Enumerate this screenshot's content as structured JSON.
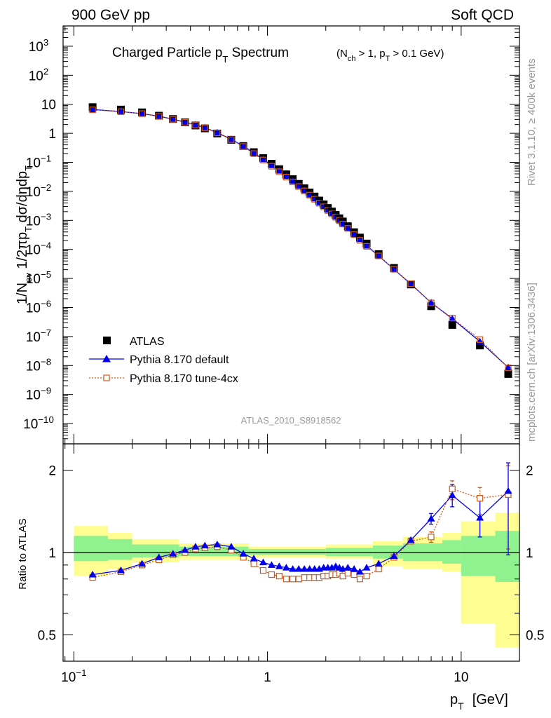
{
  "header": {
    "left": "900 GeV pp",
    "right": "Soft QCD"
  },
  "side_text": {
    "rivet": "Rivet 3.1.10, ≥ 400k events",
    "mcplots": "mcplots.cern.ch [arXiv:1306.3436]"
  },
  "colors": {
    "atlas": "#000000",
    "default": "#0000ee",
    "tune": "#cc5a1e",
    "band_inner": "#8ff28f",
    "band_outer": "#fdfd91",
    "side_text": "#999999"
  },
  "chart_data": [
    {
      "type": "scatter",
      "title": "Charged Particle pT Spectrum",
      "title_main": "Charged Particle p",
      "title_sub": "T",
      "title_tail": " Spectrum",
      "cuts": {
        "p1": "(N",
        "s1": "ch",
        "p2": " > 1, p",
        "s2": "T",
        "p3": " > 0.1 GeV)"
      },
      "ylabel": "1/N_ev 1/2πp_T dσ/dηdp_T",
      "ylabel_parts": {
        "a": "1/N",
        "a_sub": "ev",
        "b": " 1/2πp",
        "b_sub": "T",
        "c": " dσ/dηdp",
        "c_sub": "T"
      },
      "xlabel": "p_T [GeV]",
      "xlabel_parts": {
        "main": "p",
        "sub": "T",
        "unit": "[GeV]"
      },
      "analysis_id": "ATLAS_2010_S8918562",
      "xscale": "log",
      "yscale": "log",
      "xlim": [
        0.088,
        20
      ],
      "ylim": [
        2e-11,
        5000
      ],
      "x_ticks": [
        {
          "value": 0.1,
          "base": "10",
          "exp": "−1"
        },
        {
          "value": 1,
          "base": "1",
          "exp": ""
        },
        {
          "value": 10,
          "base": "10",
          "exp": ""
        }
      ],
      "y_ticks": [
        {
          "value": 1e-10,
          "base": "10",
          "exp": "−10"
        },
        {
          "value": 1e-09,
          "base": "10",
          "exp": "−9"
        },
        {
          "value": 1e-08,
          "base": "10",
          "exp": "−8"
        },
        {
          "value": 1e-07,
          "base": "10",
          "exp": "−7"
        },
        {
          "value": 1e-06,
          "base": "10",
          "exp": "−6"
        },
        {
          "value": 1e-05,
          "base": "10",
          "exp": "−5"
        },
        {
          "value": 0.0001,
          "base": "10",
          "exp": "−4"
        },
        {
          "value": 0.001,
          "base": "10",
          "exp": "−3"
        },
        {
          "value": 0.01,
          "base": "10",
          "exp": "−2"
        },
        {
          "value": 0.1,
          "base": "10",
          "exp": "−1"
        },
        {
          "value": 1,
          "base": "1",
          "exp": ""
        },
        {
          "value": 10,
          "base": "10",
          "exp": ""
        },
        {
          "value": 100,
          "base": "10",
          "exp": "2"
        },
        {
          "value": 1000,
          "base": "10",
          "exp": "3"
        }
      ],
      "legend": {
        "position": "bottom-left",
        "entries": [
          "ATLAS",
          "Pythia 8.170 default",
          "Pythia 8.170 tune-4cx"
        ]
      },
      "x": [
        0.125,
        0.175,
        0.225,
        0.275,
        0.325,
        0.375,
        0.425,
        0.475,
        0.55,
        0.65,
        0.75,
        0.85,
        0.95,
        1.05,
        1.15,
        1.25,
        1.35,
        1.45,
        1.55,
        1.65,
        1.75,
        1.85,
        1.95,
        2.05,
        2.15,
        2.25,
        2.35,
        2.45,
        2.6,
        2.8,
        3.0,
        3.25,
        3.75,
        4.5,
        5.5,
        7.0,
        9.0,
        12.5,
        17.5
      ],
      "series": [
        {
          "name": "ATLAS",
          "marker": "square",
          "values": [
            7.96,
            6.55,
            5.27,
            4.04,
            3.11,
            2.39,
            1.86,
            1.48,
            0.985,
            0.598,
            0.365,
            0.224,
            0.14,
            0.0895,
            0.0581,
            0.0386,
            0.0263,
            0.0181,
            0.0128,
            0.00914,
            0.00662,
            0.00483,
            0.00357,
            0.00268,
            0.00202,
            0.00154,
            0.00118,
            0.000915,
            0.000629,
            0.000391,
            0.000256,
            0.000159,
            6.9e-05,
            2.3e-05,
            6.2e-06,
            1.1e-06,
            2.5e-07,
            4.9e-08,
            5.1e-09
          ]
        },
        {
          "name": "Pythia 8.170 default",
          "marker": "triangle",
          "values": [
            6.6,
            5.6,
            4.75,
            3.87,
            3.08,
            2.44,
            1.96,
            1.57,
            1.05,
            0.625,
            0.36,
            0.211,
            0.127,
            0.0788,
            0.0509,
            0.0333,
            0.0226,
            0.0155,
            0.0109,
            0.00775,
            0.00565,
            0.00414,
            0.0031,
            0.00233,
            0.00176,
            0.00136,
            0.00103,
            0.000774,
            0.000548,
            0.000335,
            0.000223,
            0.000134,
            6.06e-05,
            2.06e-05,
            6.4e-06,
            1.46e-06,
            4.1e-07,
            6.7e-08,
            8.6e-09
          ]
        },
        {
          "name": "Pythia 8.170 tune-4cx",
          "marker": "open-square",
          "values": [
            6.45,
            5.55,
            4.75,
            3.8,
            3.03,
            2.39,
            1.92,
            1.54,
            1.03,
            0.605,
            0.35,
            0.2,
            0.12,
            0.0734,
            0.0474,
            0.031,
            0.0211,
            0.0146,
            0.0104,
            0.00743,
            0.00535,
            0.00391,
            0.00293,
            0.00219,
            0.00167,
            0.00128,
            0.00099,
            0.00075,
            0.000528,
            0.000323,
            0.000206,
            0.000127,
            5.96e-05,
            2.06e-05,
            6.6e-06,
            1.44e-06,
            4.3e-07,
            7.8e-08,
            8.3e-09
          ]
        }
      ]
    },
    {
      "type": "scatter",
      "ylabel": "Ratio to ATLAS",
      "xscale": "log",
      "yscale": "log",
      "xlim": [
        0.088,
        20
      ],
      "ylim": [
        0.4,
        2.5
      ],
      "y_ticks": [
        {
          "value": 0.5,
          "label": "0.5"
        },
        {
          "value": 1,
          "label": "1"
        },
        {
          "value": 2,
          "label": "2"
        }
      ],
      "reference_line": 1,
      "bands": [
        {
          "xlo": 0.1,
          "xhi": 0.15,
          "inner": [
            0.93,
            1.15
          ],
          "outer": [
            0.82,
            1.25
          ]
        },
        {
          "xlo": 0.15,
          "xhi": 0.2,
          "inner": [
            0.94,
            1.12
          ],
          "outer": [
            0.87,
            1.18
          ]
        },
        {
          "xlo": 0.2,
          "xhi": 0.35,
          "inner": [
            0.96,
            1.07
          ],
          "outer": [
            0.92,
            1.12
          ]
        },
        {
          "xlo": 0.35,
          "xhi": 0.8,
          "inner": [
            0.97,
            1.05
          ],
          "outer": [
            0.94,
            1.08
          ]
        },
        {
          "xlo": 0.8,
          "xhi": 2.0,
          "inner": [
            0.98,
            1.03
          ],
          "outer": [
            0.96,
            1.05
          ]
        },
        {
          "xlo": 2.0,
          "xhi": 3.5,
          "inner": [
            0.97,
            1.04
          ],
          "outer": [
            0.95,
            1.07
          ]
        },
        {
          "xlo": 3.5,
          "xhi": 5.0,
          "inner": [
            0.95,
            1.06
          ],
          "outer": [
            0.89,
            1.1
          ]
        },
        {
          "xlo": 5.0,
          "xhi": 8.0,
          "inner": [
            0.93,
            1.08
          ],
          "outer": [
            0.87,
            1.14
          ]
        },
        {
          "xlo": 8.0,
          "xhi": 10.0,
          "inner": [
            0.91,
            1.11
          ],
          "outer": [
            0.85,
            1.18
          ]
        },
        {
          "xlo": 10.0,
          "xhi": 15.0,
          "inner": [
            0.82,
            1.15
          ],
          "outer": [
            0.55,
            1.3
          ]
        },
        {
          "xlo": 15.0,
          "xhi": 20.0,
          "inner": [
            0.78,
            1.2
          ],
          "outer": [
            0.45,
            1.4
          ]
        }
      ],
      "series": [
        {
          "name": "Pythia 8.170 default",
          "marker": "triangle",
          "values": [
            0.83,
            0.86,
            0.91,
            0.96,
            0.99,
            1.02,
            1.05,
            1.06,
            1.07,
            1.05,
            0.99,
            0.95,
            0.92,
            0.9,
            0.89,
            0.88,
            0.87,
            0.87,
            0.87,
            0.87,
            0.87,
            0.87,
            0.88,
            0.88,
            0.88,
            0.89,
            0.88,
            0.87,
            0.88,
            0.87,
            0.85,
            0.88,
            0.91,
            0.97,
            1.11,
            1.33,
            1.62,
            1.34,
            1.68
          ],
          "err_lo": [
            0,
            0,
            0,
            0,
            0,
            0,
            0,
            0,
            0,
            0,
            0,
            0,
            0,
            0,
            0,
            0,
            0,
            0,
            0,
            0,
            0,
            0,
            0,
            0,
            0,
            0,
            0,
            0,
            0,
            0,
            0,
            0,
            0,
            0,
            0.02,
            0.06,
            0.15,
            0.2,
            0.7
          ],
          "err_hi": [
            0,
            0,
            0,
            0,
            0,
            0,
            0,
            0,
            0,
            0,
            0,
            0,
            0,
            0,
            0,
            0,
            0,
            0,
            0,
            0,
            0,
            0,
            0,
            0,
            0,
            0,
            0,
            0,
            0,
            0,
            0,
            0,
            0,
            0,
            0.02,
            0.06,
            0.15,
            0.25,
            0.45
          ]
        },
        {
          "name": "Pythia 8.170 tune-4cx",
          "marker": "open-square",
          "values": [
            0.81,
            0.85,
            0.9,
            0.94,
            0.98,
            1.0,
            1.03,
            1.04,
            1.05,
            1.02,
            0.96,
            0.91,
            0.86,
            0.83,
            0.82,
            0.8,
            0.8,
            0.8,
            0.81,
            0.81,
            0.81,
            0.81,
            0.82,
            0.82,
            0.83,
            0.83,
            0.84,
            0.82,
            0.84,
            0.83,
            0.8,
            0.82,
            0.87,
            0.96,
            1.1,
            1.14,
            1.71,
            1.58,
            1.63
          ],
          "err_lo": [
            0,
            0,
            0,
            0,
            0,
            0,
            0,
            0,
            0,
            0,
            0,
            0,
            0,
            0,
            0,
            0,
            0,
            0,
            0,
            0,
            0,
            0,
            0,
            0,
            0,
            0,
            0,
            0,
            0,
            0,
            0,
            0,
            0,
            0,
            0.02,
            0.05,
            0.15,
            0.2,
            0.6
          ],
          "err_hi": [
            0,
            0,
            0,
            0,
            0,
            0,
            0,
            0,
            0,
            0,
            0,
            0,
            0,
            0,
            0,
            0,
            0,
            0,
            0,
            0,
            0,
            0,
            0,
            0,
            0,
            0,
            0,
            0,
            0,
            0,
            0,
            0,
            0,
            0,
            0.02,
            0.05,
            0.12,
            0.15,
            0.45
          ]
        }
      ]
    }
  ]
}
